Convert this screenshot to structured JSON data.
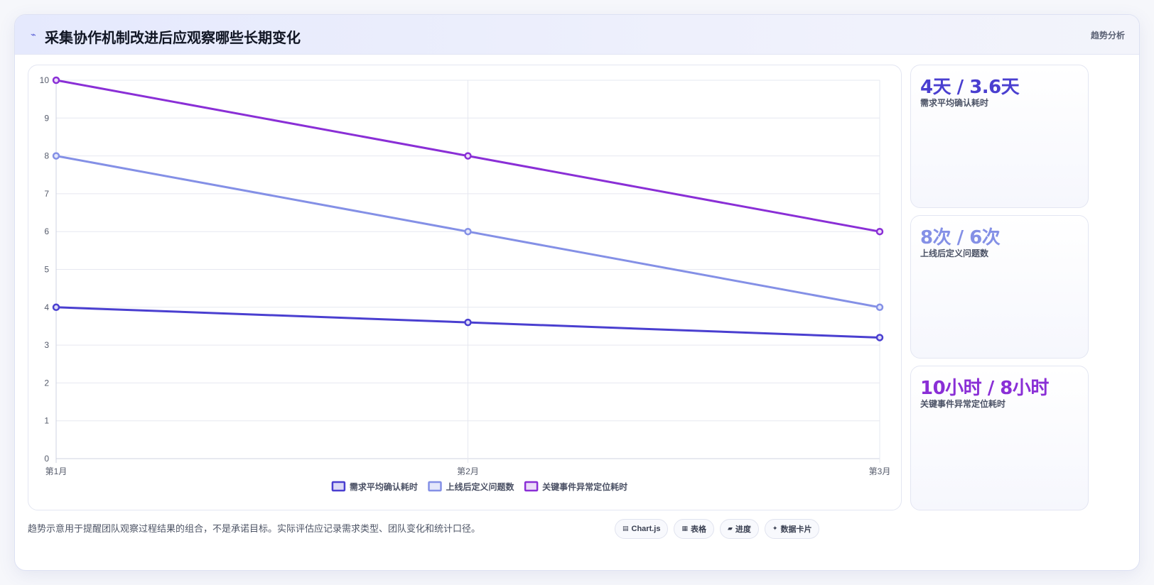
{
  "header": {
    "icon": "lightning-icon",
    "title": "采集协作机制改进后应观察哪些长期变化",
    "tag": "趋势分析"
  },
  "stats": [
    {
      "value": "4天 / 3.6天",
      "label": "需求平均确认耗时",
      "color": "#4a3fd0"
    },
    {
      "value": "8次 / 6次",
      "label": "上线后定义问题数",
      "color": "#8490e6"
    },
    {
      "value": "10小时 / 8小时",
      "label": "关键事件异常定位耗时",
      "color": "#8a2fd6"
    }
  ],
  "footnote": "趋势示意用于提醒团队观察过程结果的组合，不是承诺目标。实际评估应记录需求类型、团队变化和统计口径。",
  "chips": [
    {
      "icon": "chart-icon",
      "glyph": "▤",
      "label": "Chart.js"
    },
    {
      "icon": "table-icon",
      "glyph": "▦",
      "label": "表格"
    },
    {
      "icon": "progress-icon",
      "glyph": "▰",
      "label": "进度"
    },
    {
      "icon": "sparkle-icon",
      "glyph": "✦",
      "label": "数据卡片"
    }
  ],
  "chart_data": {
    "type": "line",
    "categories": [
      "第1月",
      "第2月",
      "第3月"
    ],
    "series": [
      {
        "name": "需求平均确认耗时",
        "values": [
          4,
          3.6,
          3.2
        ],
        "color": "#4a3fd0",
        "fill": "#dcdaf7"
      },
      {
        "name": "上线后定义问题数",
        "values": [
          8,
          6,
          4
        ],
        "color": "#8490e6",
        "fill": "#e4e7fb"
      },
      {
        "name": "关键事件异常定位耗时",
        "values": [
          10,
          8,
          6
        ],
        "color": "#8a2fd6",
        "fill": "#ecdcf9"
      }
    ],
    "ylim": [
      0,
      10
    ],
    "yticks": [
      "0",
      "1",
      "2",
      "3",
      "4",
      "5",
      "6",
      "7",
      "8",
      "9",
      "10"
    ],
    "grid": true,
    "legend": "bottom"
  }
}
